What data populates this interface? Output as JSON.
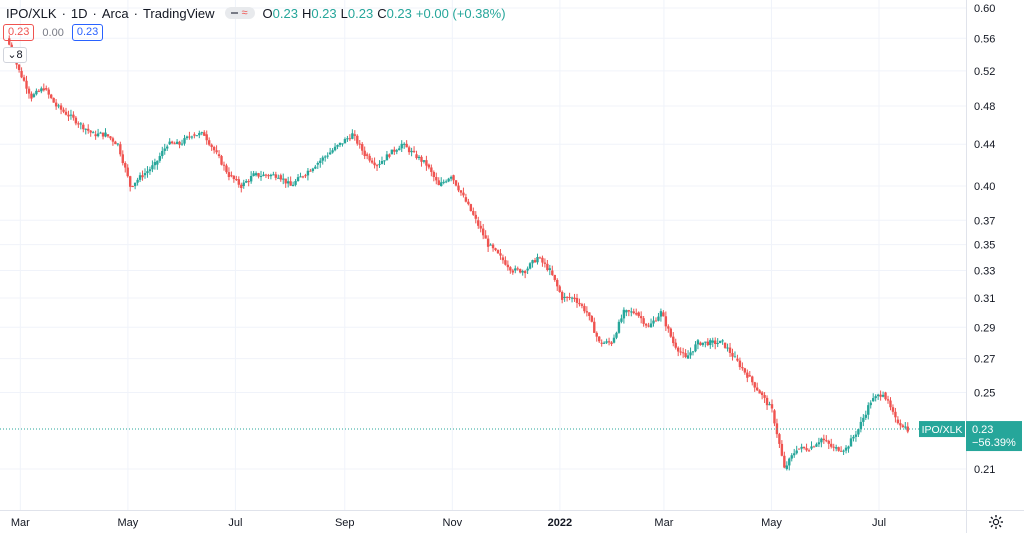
{
  "header": {
    "symbol": "IPO/XLK",
    "interval": "1D",
    "exchange": "Arca",
    "source": "TradingView",
    "ohlc": {
      "o_label": "O",
      "o": "0.23",
      "h_label": "H",
      "h": "0.23",
      "l_label": "L",
      "l": "0.23",
      "c_label": "C",
      "c": "0.23",
      "change": "+0.00 (+0.38%)"
    }
  },
  "indicators": {
    "red_value": "0.23",
    "zero_value": "0.00",
    "blue_value": "0.23",
    "collapse_label": "8"
  },
  "price_tag": {
    "symbol": "IPO/XLK",
    "price": "0.23",
    "change_pct": "−56.39%"
  },
  "colors": {
    "up": "#26a69a",
    "down": "#ef5350",
    "grid": "#f0f3fa",
    "axis_text": "#131722",
    "price_tag": "#26a69a"
  },
  "chart_data": {
    "type": "candlestick",
    "y_scale": "log",
    "y_ticks": [
      "0.60",
      "0.56",
      "0.52",
      "0.48",
      "0.44",
      "0.40",
      "0.37",
      "0.35",
      "0.33",
      "0.31",
      "0.29",
      "0.27",
      "0.25",
      "0.21"
    ],
    "x_ticks": [
      "Mar",
      "May",
      "Jul",
      "Sep",
      "Nov",
      "2022",
      "Mar",
      "May",
      "Jul"
    ],
    "close_series": [
      [
        "2021-02-22",
        0.56
      ],
      [
        "2021-03-01",
        0.52
      ],
      [
        "2021-03-08",
        0.49
      ],
      [
        "2021-03-15",
        0.5
      ],
      [
        "2021-03-22",
        0.48
      ],
      [
        "2021-03-29",
        0.47
      ],
      [
        "2021-04-05",
        0.46
      ],
      [
        "2021-04-12",
        0.45
      ],
      [
        "2021-04-19",
        0.45
      ],
      [
        "2021-04-26",
        0.44
      ],
      [
        "2021-05-03",
        0.4
      ],
      [
        "2021-05-10",
        0.41
      ],
      [
        "2021-05-17",
        0.42
      ],
      [
        "2021-05-24",
        0.44
      ],
      [
        "2021-05-31",
        0.44
      ],
      [
        "2021-06-07",
        0.45
      ],
      [
        "2021-06-14",
        0.45
      ],
      [
        "2021-06-21",
        0.43
      ],
      [
        "2021-06-28",
        0.41
      ],
      [
        "2021-07-05",
        0.4
      ],
      [
        "2021-07-12",
        0.41
      ],
      [
        "2021-07-19",
        0.41
      ],
      [
        "2021-07-26",
        0.41
      ],
      [
        "2021-08-02",
        0.4
      ],
      [
        "2021-08-09",
        0.41
      ],
      [
        "2021-08-16",
        0.42
      ],
      [
        "2021-08-23",
        0.43
      ],
      [
        "2021-08-30",
        0.44
      ],
      [
        "2021-09-06",
        0.45
      ],
      [
        "2021-09-13",
        0.43
      ],
      [
        "2021-09-20",
        0.42
      ],
      [
        "2021-09-27",
        0.43
      ],
      [
        "2021-10-04",
        0.44
      ],
      [
        "2021-10-11",
        0.43
      ],
      [
        "2021-10-18",
        0.42
      ],
      [
        "2021-10-25",
        0.4
      ],
      [
        "2021-11-01",
        0.41
      ],
      [
        "2021-11-08",
        0.39
      ],
      [
        "2021-11-15",
        0.37
      ],
      [
        "2021-11-22",
        0.35
      ],
      [
        "2021-11-29",
        0.34
      ],
      [
        "2021-12-06",
        0.33
      ],
      [
        "2021-12-13",
        0.33
      ],
      [
        "2021-12-20",
        0.34
      ],
      [
        "2021-12-27",
        0.33
      ],
      [
        "2022-01-03",
        0.31
      ],
      [
        "2022-01-10",
        0.31
      ],
      [
        "2022-01-17",
        0.3
      ],
      [
        "2022-01-24",
        0.28
      ],
      [
        "2022-01-31",
        0.28
      ],
      [
        "2022-02-07",
        0.3
      ],
      [
        "2022-02-14",
        0.3
      ],
      [
        "2022-02-21",
        0.29
      ],
      [
        "2022-02-28",
        0.3
      ],
      [
        "2022-03-07",
        0.28
      ],
      [
        "2022-03-14",
        0.27
      ],
      [
        "2022-03-21",
        0.28
      ],
      [
        "2022-03-28",
        0.28
      ],
      [
        "2022-04-04",
        0.28
      ],
      [
        "2022-04-11",
        0.27
      ],
      [
        "2022-04-18",
        0.26
      ],
      [
        "2022-04-25",
        0.25
      ],
      [
        "2022-05-02",
        0.24
      ],
      [
        "2022-05-09",
        0.21
      ],
      [
        "2022-05-16",
        0.22
      ],
      [
        "2022-05-23",
        0.22
      ],
      [
        "2022-05-30",
        0.225
      ],
      [
        "2022-06-06",
        0.22
      ],
      [
        "2022-06-13",
        0.22
      ],
      [
        "2022-06-20",
        0.23
      ],
      [
        "2022-06-27",
        0.245
      ],
      [
        "2022-07-04",
        0.25
      ],
      [
        "2022-07-11",
        0.235
      ],
      [
        "2022-07-18",
        0.23
      ]
    ]
  }
}
